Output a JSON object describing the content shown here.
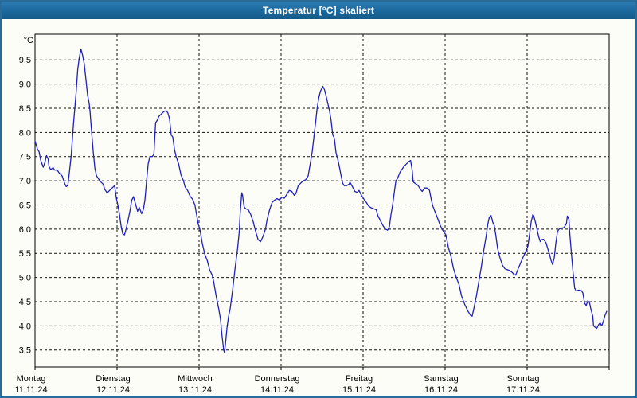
{
  "window": {
    "title": "Temperatur [°C] skaliert"
  },
  "colors": {
    "titlebar": "#1d6ba0",
    "window_border": "#2b6b97",
    "background": "#fdfdf7",
    "line": "#1f1fbf",
    "grid": "#111111",
    "axis": "#000000",
    "text": "#000000"
  },
  "chart_data": {
    "type": "line",
    "title": "Temperatur [°C] skaliert",
    "y_unit_label": "°C",
    "grid": "dashed",
    "legend": "none",
    "ylim": [
      3.15,
      10.03
    ],
    "xlim_days": [
      0,
      7
    ],
    "yticks": [
      {
        "v": 9.5,
        "label": "9,5"
      },
      {
        "v": 9.0,
        "label": "9,0"
      },
      {
        "v": 8.5,
        "label": "8,5"
      },
      {
        "v": 8.0,
        "label": "8,0"
      },
      {
        "v": 7.5,
        "label": "7,5"
      },
      {
        "v": 7.0,
        "label": "7,0"
      },
      {
        "v": 6.5,
        "label": "6,5"
      },
      {
        "v": 6.0,
        "label": "6,0"
      },
      {
        "v": 5.5,
        "label": "5,5"
      },
      {
        "v": 5.0,
        "label": "5,0"
      },
      {
        "v": 4.5,
        "label": "4,5"
      },
      {
        "v": 4.0,
        "label": "4,0"
      },
      {
        "v": 3.5,
        "label": "3,5"
      }
    ],
    "x_axis_days": [
      {
        "name": "Montag",
        "date": "11.11.24"
      },
      {
        "name": "Dienstag",
        "date": "12.11.24"
      },
      {
        "name": "Mittwoch",
        "date": "13.11.24"
      },
      {
        "name": "Donnerstag",
        "date": "14.11.24"
      },
      {
        "name": "Freitag",
        "date": "15.11.24"
      },
      {
        "name": "Samstag",
        "date": "16.11.24"
      },
      {
        "name": "Sonntag",
        "date": "17.11.24"
      }
    ],
    "series": [
      {
        "name": "Temperatur",
        "color": "#1f1fbf",
        "points": [
          [
            0,
            7.82
          ],
          [
            0.03,
            7.65
          ],
          [
            0.05,
            7.6
          ],
          [
            0.07,
            7.42
          ],
          [
            0.1,
            7.28
          ],
          [
            0.12,
            7.38
          ],
          [
            0.14,
            7.52
          ],
          [
            0.16,
            7.45
          ],
          [
            0.17,
            7.3
          ],
          [
            0.19,
            7.23
          ],
          [
            0.22,
            7.27
          ],
          [
            0.24,
            7.22
          ],
          [
            0.27,
            7.22
          ],
          [
            0.3,
            7.15
          ],
          [
            0.33,
            7.1
          ],
          [
            0.36,
            6.95
          ],
          [
            0.38,
            6.88
          ],
          [
            0.4,
            6.9
          ],
          [
            0.42,
            7.2
          ],
          [
            0.44,
            7.5
          ],
          [
            0.47,
            8.2
          ],
          [
            0.5,
            8.8
          ],
          [
            0.52,
            9.3
          ],
          [
            0.54,
            9.55
          ],
          [
            0.56,
            9.72
          ],
          [
            0.58,
            9.6
          ],
          [
            0.6,
            9.42
          ],
          [
            0.62,
            9.1
          ],
          [
            0.64,
            8.78
          ],
          [
            0.66,
            8.6
          ],
          [
            0.67,
            8.45
          ],
          [
            0.69,
            8.0
          ],
          [
            0.71,
            7.6
          ],
          [
            0.73,
            7.25
          ],
          [
            0.75,
            7.1
          ],
          [
            0.77,
            7.05
          ],
          [
            0.8,
            6.98
          ],
          [
            0.83,
            6.93
          ],
          [
            0.85,
            6.82
          ],
          [
            0.88,
            6.75
          ],
          [
            0.91,
            6.8
          ],
          [
            0.94,
            6.85
          ],
          [
            0.97,
            6.9
          ],
          [
            0.99,
            6.65
          ],
          [
            1.01,
            6.5
          ],
          [
            1.03,
            6.3
          ],
          [
            1.05,
            6.05
          ],
          [
            1.07,
            5.9
          ],
          [
            1.09,
            5.88
          ],
          [
            1.11,
            6.0
          ],
          [
            1.13,
            6.15
          ],
          [
            1.16,
            6.4
          ],
          [
            1.18,
            6.6
          ],
          [
            1.2,
            6.67
          ],
          [
            1.22,
            6.55
          ],
          [
            1.25,
            6.37
          ],
          [
            1.27,
            6.45
          ],
          [
            1.3,
            6.32
          ],
          [
            1.32,
            6.4
          ],
          [
            1.34,
            6.6
          ],
          [
            1.36,
            7.0
          ],
          [
            1.38,
            7.35
          ],
          [
            1.4,
            7.5
          ],
          [
            1.43,
            7.5
          ],
          [
            1.45,
            7.55
          ],
          [
            1.47,
            8.2
          ],
          [
            1.49,
            8.25
          ],
          [
            1.51,
            8.33
          ],
          [
            1.54,
            8.38
          ],
          [
            1.57,
            8.43
          ],
          [
            1.6,
            8.45
          ],
          [
            1.62,
            8.4
          ],
          [
            1.64,
            8.28
          ],
          [
            1.66,
            7.95
          ],
          [
            1.68,
            7.9
          ],
          [
            1.7,
            7.65
          ],
          [
            1.72,
            7.5
          ],
          [
            1.75,
            7.35
          ],
          [
            1.78,
            7.12
          ],
          [
            1.81,
            7.0
          ],
          [
            1.83,
            6.87
          ],
          [
            1.86,
            6.8
          ],
          [
            1.89,
            6.68
          ],
          [
            1.92,
            6.62
          ],
          [
            1.95,
            6.5
          ],
          [
            1.97,
            6.3
          ],
          [
            1.99,
            6.1
          ],
          [
            2.01,
            6.0
          ],
          [
            2.04,
            5.7
          ],
          [
            2.07,
            5.48
          ],
          [
            2.1,
            5.35
          ],
          [
            2.13,
            5.15
          ],
          [
            2.16,
            5.05
          ],
          [
            2.18,
            4.9
          ],
          [
            2.21,
            4.6
          ],
          [
            2.24,
            4.35
          ],
          [
            2.26,
            4.15
          ],
          [
            2.28,
            3.8
          ],
          [
            2.3,
            3.5
          ],
          [
            2.31,
            3.45
          ],
          [
            2.32,
            3.6
          ],
          [
            2.34,
            3.95
          ],
          [
            2.36,
            4.2
          ],
          [
            2.38,
            4.36
          ],
          [
            2.41,
            4.75
          ],
          [
            2.44,
            5.2
          ],
          [
            2.47,
            5.6
          ],
          [
            2.49,
            5.95
          ],
          [
            2.5,
            6.3
          ],
          [
            2.52,
            6.75
          ],
          [
            2.53,
            6.7
          ],
          [
            2.55,
            6.46
          ],
          [
            2.57,
            6.42
          ],
          [
            2.6,
            6.4
          ],
          [
            2.63,
            6.3
          ],
          [
            2.66,
            6.15
          ],
          [
            2.69,
            5.95
          ],
          [
            2.72,
            5.78
          ],
          [
            2.75,
            5.74
          ],
          [
            2.78,
            5.85
          ],
          [
            2.81,
            6.0
          ],
          [
            2.83,
            6.2
          ],
          [
            2.86,
            6.4
          ],
          [
            2.89,
            6.55
          ],
          [
            2.92,
            6.6
          ],
          [
            2.95,
            6.63
          ],
          [
            2.98,
            6.6
          ],
          [
            3.01,
            6.66
          ],
          [
            3.04,
            6.64
          ],
          [
            3.07,
            6.72
          ],
          [
            3.1,
            6.8
          ],
          [
            3.13,
            6.78
          ],
          [
            3.16,
            6.7
          ],
          [
            3.18,
            6.73
          ],
          [
            3.21,
            6.9
          ],
          [
            3.24,
            6.95
          ],
          [
            3.27,
            7.0
          ],
          [
            3.3,
            7.02
          ],
          [
            3.33,
            7.1
          ],
          [
            3.36,
            7.4
          ],
          [
            3.38,
            7.6
          ],
          [
            3.4,
            7.9
          ],
          [
            3.42,
            8.2
          ],
          [
            3.44,
            8.5
          ],
          [
            3.46,
            8.72
          ],
          [
            3.48,
            8.85
          ],
          [
            3.5,
            8.92
          ],
          [
            3.51,
            8.95
          ],
          [
            3.53,
            8.88
          ],
          [
            3.55,
            8.75
          ],
          [
            3.57,
            8.6
          ],
          [
            3.59,
            8.45
          ],
          [
            3.61,
            8.25
          ],
          [
            3.63,
            7.95
          ],
          [
            3.65,
            7.88
          ],
          [
            3.67,
            7.58
          ],
          [
            3.69,
            7.45
          ],
          [
            3.71,
            7.3
          ],
          [
            3.73,
            7.12
          ],
          [
            3.75,
            6.95
          ],
          [
            3.77,
            6.9
          ],
          [
            3.8,
            6.9
          ],
          [
            3.83,
            6.93
          ],
          [
            3.84,
            6.97
          ],
          [
            3.87,
            6.88
          ],
          [
            3.9,
            6.78
          ],
          [
            3.93,
            6.76
          ],
          [
            3.95,
            6.8
          ],
          [
            3.98,
            6.7
          ],
          [
            4.01,
            6.62
          ],
          [
            4.04,
            6.55
          ],
          [
            4.07,
            6.47
          ],
          [
            4.1,
            6.44
          ],
          [
            4.13,
            6.42
          ],
          [
            4.16,
            6.4
          ],
          [
            4.18,
            6.28
          ],
          [
            4.21,
            6.18
          ],
          [
            4.24,
            6.08
          ],
          [
            4.27,
            6.0
          ],
          [
            4.3,
            5.98
          ],
          [
            4.32,
            6.05
          ],
          [
            4.34,
            6.3
          ],
          [
            4.36,
            6.5
          ],
          [
            4.38,
            6.75
          ],
          [
            4.4,
            7.0
          ],
          [
            4.42,
            7.05
          ],
          [
            4.45,
            7.18
          ],
          [
            4.48,
            7.25
          ],
          [
            4.5,
            7.3
          ],
          [
            4.53,
            7.35
          ],
          [
            4.56,
            7.4
          ],
          [
            4.58,
            7.42
          ],
          [
            4.6,
            7.2
          ],
          [
            4.61,
            6.98
          ],
          [
            4.63,
            6.95
          ],
          [
            4.66,
            6.92
          ],
          [
            4.68,
            6.88
          ],
          [
            4.7,
            6.82
          ],
          [
            4.72,
            6.78
          ],
          [
            4.75,
            6.85
          ],
          [
            4.78,
            6.85
          ],
          [
            4.81,
            6.8
          ],
          [
            4.83,
            6.62
          ],
          [
            4.85,
            6.48
          ],
          [
            4.88,
            6.35
          ],
          [
            4.91,
            6.22
          ],
          [
            4.94,
            6.08
          ],
          [
            4.97,
            5.98
          ],
          [
            5.01,
            5.88
          ],
          [
            5.04,
            5.62
          ],
          [
            5.07,
            5.45
          ],
          [
            5.1,
            5.2
          ],
          [
            5.13,
            5.03
          ],
          [
            5.17,
            4.85
          ],
          [
            5.2,
            4.62
          ],
          [
            5.24,
            4.44
          ],
          [
            5.28,
            4.3
          ],
          [
            5.31,
            4.22
          ],
          [
            5.33,
            4.2
          ],
          [
            5.35,
            4.35
          ],
          [
            5.38,
            4.6
          ],
          [
            5.41,
            4.9
          ],
          [
            5.44,
            5.2
          ],
          [
            5.47,
            5.55
          ],
          [
            5.5,
            5.85
          ],
          [
            5.52,
            6.1
          ],
          [
            5.54,
            6.25
          ],
          [
            5.56,
            6.28
          ],
          [
            5.58,
            6.15
          ],
          [
            5.6,
            6.07
          ],
          [
            5.62,
            5.85
          ],
          [
            5.64,
            5.6
          ],
          [
            5.67,
            5.4
          ],
          [
            5.7,
            5.25
          ],
          [
            5.73,
            5.18
          ],
          [
            5.76,
            5.16
          ],
          [
            5.79,
            5.14
          ],
          [
            5.82,
            5.1
          ],
          [
            5.84,
            5.06
          ],
          [
            5.86,
            5.05
          ],
          [
            5.89,
            5.18
          ],
          [
            5.92,
            5.3
          ],
          [
            5.95,
            5.42
          ],
          [
            5.98,
            5.52
          ],
          [
            6.01,
            5.65
          ],
          [
            6.03,
            5.9
          ],
          [
            6.05,
            6.15
          ],
          [
            6.07,
            6.3
          ],
          [
            6.08,
            6.28
          ],
          [
            6.1,
            6.15
          ],
          [
            6.12,
            6.0
          ],
          [
            6.14,
            5.85
          ],
          [
            6.16,
            5.74
          ],
          [
            6.17,
            5.78
          ],
          [
            6.2,
            5.79
          ],
          [
            6.23,
            5.72
          ],
          [
            6.25,
            5.6
          ],
          [
            6.27,
            5.5
          ],
          [
            6.29,
            5.36
          ],
          [
            6.31,
            5.27
          ],
          [
            6.33,
            5.4
          ],
          [
            6.35,
            5.7
          ],
          [
            6.37,
            5.95
          ],
          [
            6.39,
            6.0
          ],
          [
            6.42,
            6.02
          ],
          [
            6.45,
            6.03
          ],
          [
            6.48,
            6.12
          ],
          [
            6.49,
            6.27
          ],
          [
            6.51,
            6.2
          ],
          [
            6.52,
            5.9
          ],
          [
            6.54,
            5.5
          ],
          [
            6.56,
            5.1
          ],
          [
            6.58,
            4.78
          ],
          [
            6.6,
            4.72
          ],
          [
            6.63,
            4.74
          ],
          [
            6.66,
            4.73
          ],
          [
            6.68,
            4.68
          ],
          [
            6.7,
            4.47
          ],
          [
            6.72,
            4.42
          ],
          [
            6.74,
            4.52
          ],
          [
            6.76,
            4.48
          ],
          [
            6.78,
            4.33
          ],
          [
            6.8,
            4.2
          ],
          [
            6.81,
            4.0
          ],
          [
            6.83,
            3.97
          ],
          [
            6.85,
            3.95
          ],
          [
            6.87,
            4.02
          ],
          [
            6.89,
            4.06
          ],
          [
            6.91,
            4.0
          ],
          [
            6.93,
            4.1
          ],
          [
            6.95,
            4.22
          ],
          [
            6.97,
            4.3
          ]
        ]
      }
    ]
  }
}
